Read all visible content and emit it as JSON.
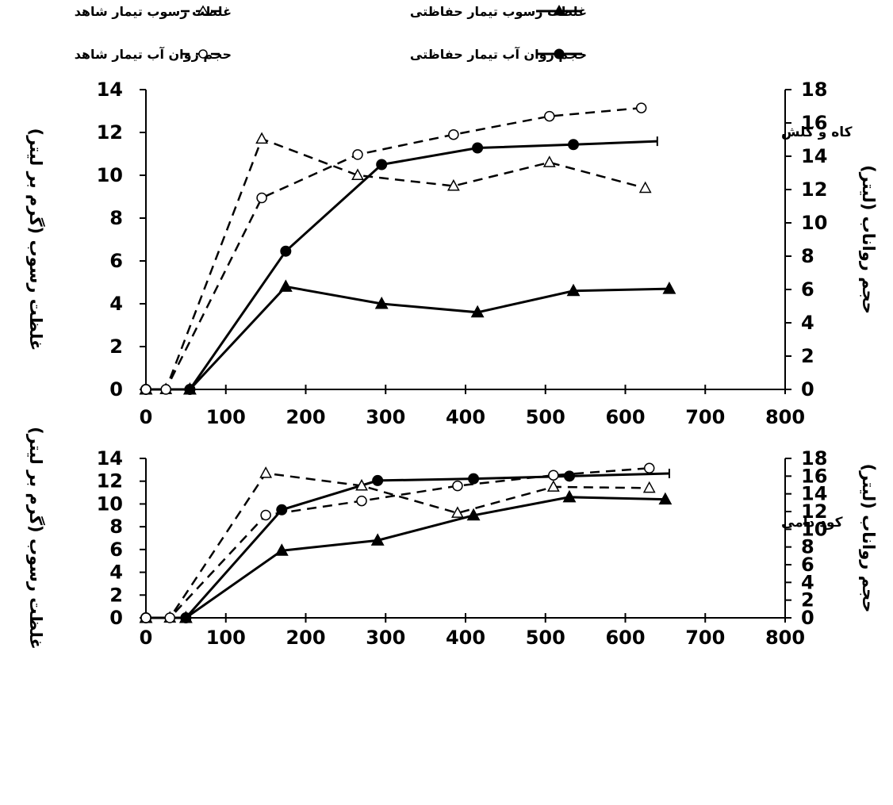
{
  "legend": {
    "items": [
      {
        "label": "غلظت رسوب تیمار شاهد",
        "series": "sediment_control"
      },
      {
        "label": "غلظت رسوب تیمار حفاظتی",
        "series": "sediment_protective"
      },
      {
        "label": "حجم روان آب تیمار شاهد",
        "series": "runoff_control"
      },
      {
        "label": "حجم روان آب تیمار حفاظتی",
        "series": "runoff_protective"
      }
    ]
  },
  "colors": {
    "lines": "#000000",
    "background": "#ffffff"
  },
  "chart_data": [
    {
      "type": "line",
      "annotation": "کاه و کلش",
      "ylabel_left": "غلظت رسوب (گرم بر لیتر)",
      "ylabel_right": "حجم رواناب (لیتر)",
      "xlabel": "",
      "xlim": [
        0,
        800
      ],
      "xticks": [
        0,
        100,
        200,
        300,
        400,
        500,
        600,
        700,
        800
      ],
      "ylim_left": [
        0,
        14
      ],
      "yticks_left": [
        0,
        2,
        4,
        6,
        8,
        10,
        12,
        14
      ],
      "ylim_right": [
        0,
        18
      ],
      "yticks_right": [
        0,
        2,
        4,
        6,
        8,
        10,
        12,
        14,
        16,
        18
      ],
      "series": [
        {
          "key": "sediment_protective",
          "axis": "left",
          "style": "solid",
          "marker": "filled-triangle",
          "points": [
            [
              0,
              0
            ],
            [
              55,
              0
            ],
            [
              175,
              4.8
            ],
            [
              295,
              4.0
            ],
            [
              415,
              3.6
            ],
            [
              535,
              4.6
            ],
            [
              655,
              4.7
            ]
          ]
        },
        {
          "key": "runoff_protective",
          "axis": "right",
          "style": "solid",
          "marker": "filled-circle",
          "points": [
            [
              0,
              0
            ],
            [
              55,
              0
            ],
            [
              175,
              8.3
            ],
            [
              295,
              13.5
            ],
            [
              415,
              14.5
            ],
            [
              535,
              14.7
            ],
            [
              640,
              14.9
            ]
          ],
          "marked": [
            0,
            1,
            2,
            3,
            4,
            5
          ]
        },
        {
          "key": "sediment_control",
          "axis": "left",
          "style": "dashed",
          "marker": "open-triangle",
          "points": [
            [
              0,
              0
            ],
            [
              25,
              0
            ],
            [
              145,
              11.7
            ],
            [
              265,
              10.0
            ],
            [
              385,
              9.5
            ],
            [
              505,
              10.6
            ],
            [
              625,
              9.4
            ]
          ]
        },
        {
          "key": "runoff_control",
          "axis": "right",
          "style": "dashed",
          "marker": "open-circle",
          "points": [
            [
              0,
              0
            ],
            [
              25,
              0
            ],
            [
              145,
              11.5
            ],
            [
              265,
              14.1
            ],
            [
              385,
              15.3
            ],
            [
              505,
              16.4
            ],
            [
              620,
              16.9
            ]
          ]
        }
      ]
    },
    {
      "type": "line",
      "annotation": "کود دامی",
      "ylabel_left": "غلظت رسوب (گرم بر لیتر)",
      "ylabel_right": "حجم رواناب (لیتر)",
      "xlabel": "",
      "xlim": [
        0,
        800
      ],
      "xticks": [
        0,
        100,
        200,
        300,
        400,
        500,
        600,
        700,
        800
      ],
      "ylim_left": [
        0,
        14
      ],
      "yticks_left": [
        0,
        2,
        4,
        6,
        8,
        10,
        12,
        14
      ],
      "ylim_right": [
        0,
        18
      ],
      "yticks_right": [
        0,
        2,
        4,
        6,
        8,
        10,
        12,
        14,
        16,
        18
      ],
      "series": [
        {
          "key": "sediment_protective",
          "axis": "left",
          "style": "solid",
          "marker": "filled-triangle",
          "points": [
            [
              0,
              0
            ],
            [
              50,
              0
            ],
            [
              170,
              5.9
            ],
            [
              290,
              6.8
            ],
            [
              410,
              9.0
            ],
            [
              530,
              10.6
            ],
            [
              650,
              10.4
            ]
          ]
        },
        {
          "key": "runoff_protective",
          "axis": "right",
          "style": "solid",
          "marker": "filled-circle",
          "points": [
            [
              0,
              0
            ],
            [
              50,
              0
            ],
            [
              170,
              12.2
            ],
            [
              290,
              15.5
            ],
            [
              410,
              15.7
            ],
            [
              530,
              16.0
            ],
            [
              655,
              16.3
            ]
          ],
          "marked": [
            0,
            1,
            2,
            3,
            4,
            5
          ]
        },
        {
          "key": "sediment_control",
          "axis": "left",
          "style": "dashed",
          "marker": "open-triangle",
          "points": [
            [
              0,
              0
            ],
            [
              30,
              0
            ],
            [
              150,
              12.7
            ],
            [
              270,
              11.6
            ],
            [
              390,
              9.2
            ],
            [
              510,
              11.5
            ],
            [
              630,
              11.4
            ]
          ]
        },
        {
          "key": "runoff_control",
          "axis": "right",
          "style": "dashed",
          "marker": "open-circle",
          "points": [
            [
              0,
              0
            ],
            [
              30,
              0
            ],
            [
              150,
              11.6
            ],
            [
              270,
              13.2
            ],
            [
              390,
              14.9
            ],
            [
              510,
              16.1
            ],
            [
              630,
              16.9
            ]
          ]
        }
      ]
    }
  ]
}
